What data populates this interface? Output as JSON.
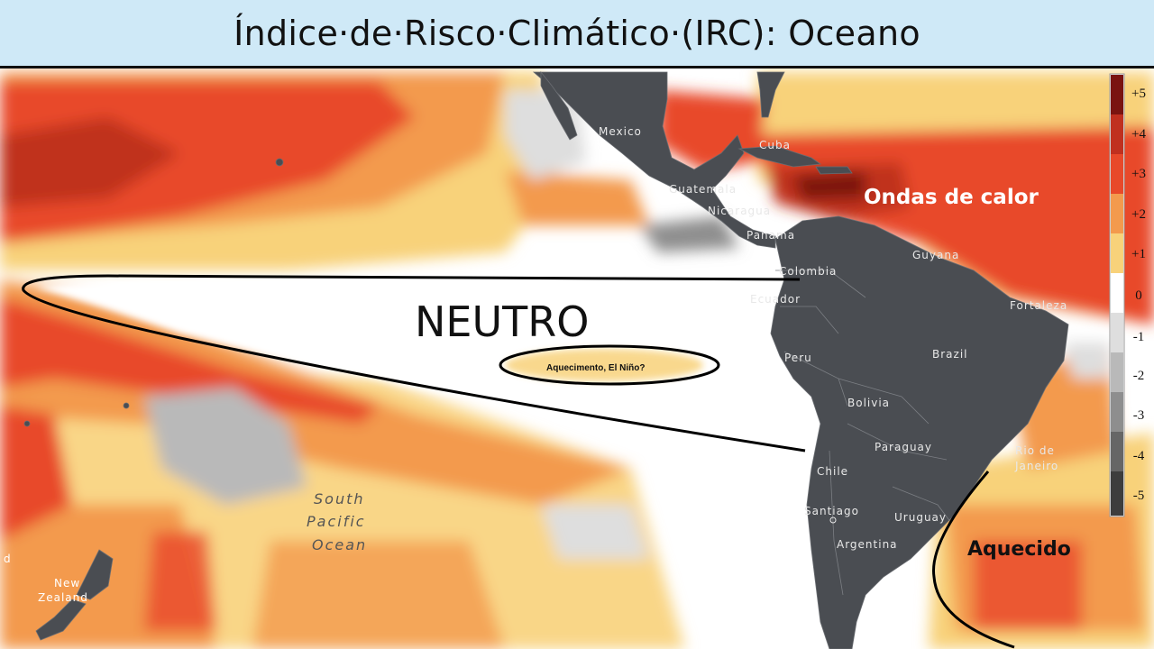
{
  "title": "Índice·de·Risco·Climático·(IRC): Oceano",
  "colors": {
    "land": "#4a4d52",
    "neutral": "#ffffff",
    "plus1": "#f8d27a",
    "plus2": "#f39a4d",
    "plus3": "#e8492a",
    "plus4": "#c0301f",
    "plus5": "#7a1410",
    "minus1": "#dedede",
    "minus2": "#b9b9b9",
    "minus3": "#8e8e8e",
    "minus4": "#666666",
    "minus5": "#3d3d3d",
    "title_bg": "#cfe9f7"
  },
  "legend": {
    "labels": [
      "+5",
      "+4",
      "+3",
      "+2",
      "+1",
      "0",
      "-1",
      "-2",
      "-3",
      "-4",
      "-5"
    ]
  },
  "annotations": {
    "neutral": "NEUTRO",
    "el_nino": "Aquecimento, El Niño?",
    "heat_waves": "Ondas de calor",
    "warmed": "Aquecido"
  },
  "map_labels": {
    "mexico": "Mexico",
    "cuba": "Cuba",
    "guatemala": "Guatemala",
    "nicaragua": "Nicaragua",
    "panama": "Panama",
    "colombia": "Colombia",
    "guyana": "Guyana",
    "ecuador": "Ecuador",
    "fortaleza": "Fortaleza",
    "peru": "Peru",
    "brazil": "Brazil",
    "bolivia": "Bolivia",
    "paraguay": "Paraguay",
    "chile": "Chile",
    "rio1": "Rio de",
    "rio2": "Janeiro",
    "santiago": "Santiago",
    "uruguay": "Uruguay",
    "argentina": "Argentina",
    "south_pacific_1": "South",
    "south_pacific_2": "Pacific",
    "south_pacific_3": "Ocean",
    "nz1": "New",
    "nz2": "Zealand",
    "nz_top": "d"
  }
}
